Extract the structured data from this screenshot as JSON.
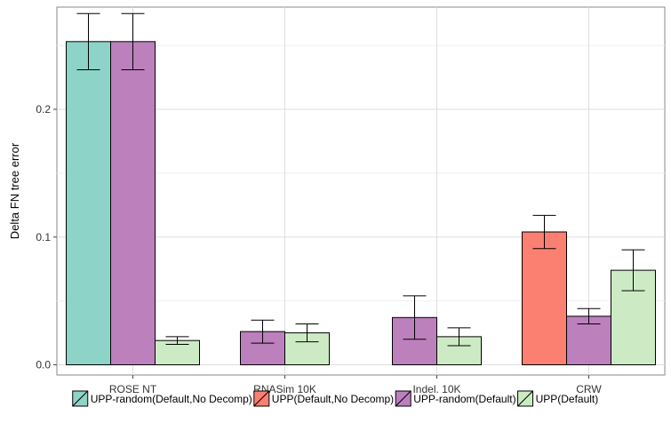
{
  "chart_data": {
    "type": "bar",
    "xlabel": "",
    "ylabel": "Delta FN tree error",
    "ylim": [
      -0.008,
      0.28
    ],
    "yticks": [
      0.0,
      0.1,
      0.2
    ],
    "ytick_labels": [
      "0.0",
      "0.1",
      "0.2"
    ],
    "categories": [
      "ROSE NT",
      "RNASim 10K",
      "Indel. 10K",
      "CRW"
    ],
    "grid": true,
    "legend_position": "bottom",
    "series": [
      {
        "name": "UPP-random(Default,No Decomp)",
        "color": "#8dd3c7",
        "values": [
          0.253,
          null,
          null,
          null
        ],
        "error": [
          0.022,
          null,
          null,
          null
        ]
      },
      {
        "name": "UPP(Default,No Decomp)",
        "color": "#fb8072",
        "values": [
          null,
          null,
          null,
          0.104
        ],
        "error": [
          null,
          null,
          null,
          0.013
        ]
      },
      {
        "name": "UPP-random(Default)",
        "color": "#bc80bd",
        "values": [
          0.253,
          0.026,
          0.037,
          0.038
        ],
        "error": [
          0.022,
          0.009,
          0.017,
          0.006
        ]
      },
      {
        "name": "UPP(Default)",
        "color": "#ccebc5",
        "values": [
          0.019,
          0.025,
          0.022,
          0.074
        ],
        "error": [
          0.003,
          0.007,
          0.007,
          0.016
        ]
      }
    ]
  }
}
